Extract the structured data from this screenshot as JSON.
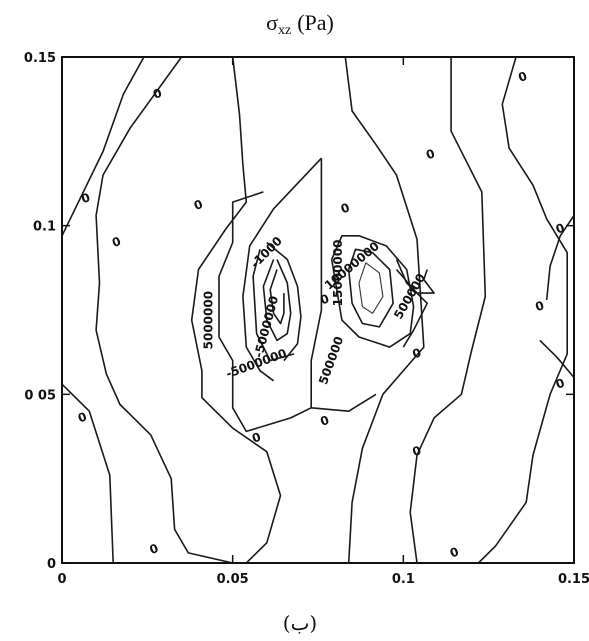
{
  "chart_data": {
    "type": "contour",
    "title": "σ",
    "title_subscript": "xz",
    "title_unit": "(Pa)",
    "caption": "(ب)",
    "xlim": [
      0,
      0.15
    ],
    "ylim": [
      0,
      0.15
    ],
    "x_ticks": [
      "0",
      "0.05",
      "0.1",
      "0.15"
    ],
    "y_ticks": [
      "0",
      "0 05",
      "0.1",
      "0.15"
    ],
    "grid": false,
    "contour_labels": [
      "0",
      "0",
      "0",
      "0",
      "0",
      "0",
      "0",
      "0",
      "0",
      "0",
      "0",
      "0",
      "0",
      "0",
      "0",
      "0",
      "0",
      "0",
      "5000000",
      "-5000000",
      "-1000",
      "10000000",
      "15000000",
      "500000"
    ],
    "contours": [
      {
        "label": "0",
        "points": [
          [
            0.0,
            0.097
          ],
          [
            0.012,
            0.122
          ],
          [
            0.018,
            0.139
          ],
          [
            0.024,
            0.15
          ]
        ]
      },
      {
        "label": "0",
        "points": [
          [
            0.0,
            0.053
          ],
          [
            0.008,
            0.045
          ],
          [
            0.014,
            0.026
          ],
          [
            0.015,
            0.0
          ]
        ]
      },
      {
        "label": "0",
        "points": [
          [
            0.035,
            0.15
          ],
          [
            0.02,
            0.129
          ],
          [
            0.012,
            0.115
          ],
          [
            0.01,
            0.103
          ],
          [
            0.011,
            0.083
          ],
          [
            0.01,
            0.069
          ],
          [
            0.013,
            0.056
          ],
          [
            0.017,
            0.047
          ],
          [
            0.026,
            0.038
          ],
          [
            0.032,
            0.025
          ],
          [
            0.033,
            0.01
          ],
          [
            0.037,
            0.003
          ],
          [
            0.05,
            0.0
          ]
        ]
      },
      {
        "label": "0",
        "points": [
          [
            0.133,
            0.15
          ],
          [
            0.129,
            0.136
          ],
          [
            0.131,
            0.123
          ],
          [
            0.138,
            0.112
          ],
          [
            0.142,
            0.102
          ],
          [
            0.148,
            0.092
          ],
          [
            0.148,
            0.062
          ],
          [
            0.143,
            0.05
          ],
          [
            0.138,
            0.032
          ],
          [
            0.136,
            0.018
          ],
          [
            0.127,
            0.005
          ],
          [
            0.122,
            0.0
          ]
        ]
      },
      {
        "label": "0",
        "points": [
          [
            0.114,
            0.15
          ],
          [
            0.114,
            0.128
          ],
          [
            0.123,
            0.11
          ],
          [
            0.124,
            0.079
          ],
          [
            0.12,
            0.063
          ],
          [
            0.117,
            0.05
          ],
          [
            0.109,
            0.043
          ],
          [
            0.104,
            0.032
          ],
          [
            0.102,
            0.015
          ],
          [
            0.104,
            0.0
          ]
        ]
      },
      {
        "label": "0",
        "points": [
          [
            0.15,
            0.103
          ],
          [
            0.146,
            0.097
          ],
          [
            0.143,
            0.088
          ],
          [
            0.142,
            0.078
          ]
        ]
      },
      {
        "label": "0",
        "points": [
          [
            0.15,
            0.055
          ],
          [
            0.145,
            0.061
          ],
          [
            0.14,
            0.066
          ]
        ]
      },
      {
        "label": "0",
        "points": [
          [
            0.05,
            0.15
          ],
          [
            0.052,
            0.133
          ],
          [
            0.053,
            0.118
          ],
          [
            0.054,
            0.107
          ],
          [
            0.048,
            0.099
          ],
          [
            0.04,
            0.087
          ],
          [
            0.038,
            0.072
          ],
          [
            0.041,
            0.057
          ],
          [
            0.041,
            0.049
          ],
          [
            0.05,
            0.04
          ],
          [
            0.06,
            0.033
          ],
          [
            0.064,
            0.02
          ],
          [
            0.06,
            0.006
          ],
          [
            0.054,
            0.0
          ]
        ]
      },
      {
        "label": "0",
        "points": [
          [
            0.083,
            0.15
          ],
          [
            0.085,
            0.134
          ],
          [
            0.092,
            0.124
          ],
          [
            0.098,
            0.115
          ],
          [
            0.104,
            0.096
          ],
          [
            0.106,
            0.064
          ],
          [
            0.094,
            0.05
          ],
          [
            0.088,
            0.034
          ],
          [
            0.085,
            0.018
          ],
          [
            0.084,
            0.0
          ]
        ]
      },
      {
        "label": "0",
        "points": [
          [
            0.076,
            0.12
          ],
          [
            0.076,
            0.075
          ],
          [
            0.073,
            0.06
          ],
          [
            0.073,
            0.046
          ],
          [
            0.084,
            0.045
          ],
          [
            0.092,
            0.05
          ]
        ]
      },
      {
        "label": "0",
        "points": [
          [
            0.059,
            0.11
          ],
          [
            0.05,
            0.107
          ],
          [
            0.05,
            0.095
          ],
          [
            0.046,
            0.085
          ],
          [
            0.046,
            0.067
          ],
          [
            0.05,
            0.06
          ],
          [
            0.05,
            0.046
          ],
          [
            0.054,
            0.039
          ],
          [
            0.067,
            0.043
          ],
          [
            0.073,
            0.046
          ]
        ]
      },
      {
        "label": "-1000",
        "points": [
          [
            0.076,
            0.12
          ],
          [
            0.062,
            0.105
          ],
          [
            0.055,
            0.094
          ],
          [
            0.053,
            0.079
          ],
          [
            0.054,
            0.064
          ],
          [
            0.058,
            0.057
          ],
          [
            0.062,
            0.054
          ]
        ]
      },
      {
        "label": "-5000000",
        "points": [
          [
            0.058,
            0.093
          ],
          [
            0.056,
            0.085
          ],
          [
            0.057,
            0.068
          ],
          [
            0.061,
            0.06
          ],
          [
            0.068,
            0.062
          ]
        ]
      },
      {
        "label": "inner",
        "thin": false,
        "points": [
          [
            0.062,
            0.09
          ],
          [
            0.059,
            0.082
          ],
          [
            0.06,
            0.072
          ],
          [
            0.063,
            0.066
          ],
          [
            0.066,
            0.068
          ],
          [
            0.067,
            0.074
          ],
          [
            0.066,
            0.083
          ],
          [
            0.063,
            0.09
          ]
        ]
      },
      {
        "label": "inner",
        "thin": false,
        "points": [
          [
            0.063,
            0.087
          ],
          [
            0.061,
            0.081
          ],
          [
            0.062,
            0.074
          ],
          [
            0.064,
            0.071
          ],
          [
            0.065,
            0.074
          ],
          [
            0.065,
            0.08
          ]
        ]
      },
      {
        "label": "inner",
        "thin": false,
        "points": [
          [
            0.06,
            0.095
          ],
          [
            0.066,
            0.09
          ],
          [
            0.069,
            0.082
          ],
          [
            0.07,
            0.073
          ],
          [
            0.069,
            0.065
          ],
          [
            0.065,
            0.06
          ]
        ]
      },
      {
        "label": "1000",
        "points": [
          [
            0.079,
            0.09
          ],
          [
            0.082,
            0.097
          ],
          [
            0.087,
            0.097
          ],
          [
            0.095,
            0.094
          ],
          [
            0.101,
            0.087
          ],
          [
            0.103,
            0.076
          ],
          [
            0.102,
            0.068
          ],
          [
            0.096,
            0.064
          ],
          [
            0.087,
            0.067
          ],
          [
            0.082,
            0.072
          ],
          [
            0.079,
            0.09
          ]
        ]
      },
      {
        "label": "10000000",
        "points": [
          [
            0.084,
            0.087
          ],
          [
            0.086,
            0.093
          ],
          [
            0.091,
            0.092
          ],
          [
            0.096,
            0.087
          ],
          [
            0.097,
            0.077
          ],
          [
            0.093,
            0.07
          ],
          [
            0.088,
            0.071
          ],
          [
            0.085,
            0.077
          ],
          [
            0.084,
            0.087
          ]
        ]
      },
      {
        "label": "15000000",
        "thin": true,
        "points": [
          [
            0.089,
            0.089
          ],
          [
            0.093,
            0.086
          ],
          [
            0.094,
            0.079
          ],
          [
            0.091,
            0.074
          ],
          [
            0.088,
            0.076
          ],
          [
            0.087,
            0.083
          ],
          [
            0.089,
            0.089
          ]
        ]
      },
      {
        "label": "arrow",
        "points": [
          [
            0.098,
            0.087
          ],
          [
            0.104,
            0.08
          ],
          [
            0.109,
            0.08
          ],
          [
            0.106,
            0.084
          ],
          [
            0.107,
            0.087
          ]
        ]
      },
      {
        "label": "500000",
        "points": [
          [
            0.098,
            0.09
          ],
          [
            0.101,
            0.083
          ],
          [
            0.107,
            0.077
          ],
          [
            0.103,
            0.069
          ],
          [
            0.1,
            0.064
          ]
        ]
      }
    ],
    "label_positions": [
      {
        "text": "0",
        "x": 0.028,
        "y": 0.139,
        "rot": -20
      },
      {
        "text": "0",
        "x": 0.007,
        "y": 0.108,
        "rot": -20
      },
      {
        "text": "0",
        "x": 0.016,
        "y": 0.095,
        "rot": -20
      },
      {
        "text": "0",
        "x": 0.006,
        "y": 0.043,
        "rot": -20
      },
      {
        "text": "0",
        "x": 0.027,
        "y": 0.004,
        "rot": -20
      },
      {
        "text": "0",
        "x": 0.04,
        "y": 0.106,
        "rot": -20
      },
      {
        "text": "0",
        "x": 0.057,
        "y": 0.037,
        "rot": -20
      },
      {
        "text": "0",
        "x": 0.077,
        "y": 0.078,
        "rot": -20
      },
      {
        "text": "0",
        "x": 0.077,
        "y": 0.042,
        "rot": -20
      },
      {
        "text": "0",
        "x": 0.083,
        "y": 0.105,
        "rot": -20
      },
      {
        "text": "0",
        "x": 0.108,
        "y": 0.121,
        "rot": -20
      },
      {
        "text": "0",
        "x": 0.104,
        "y": 0.062,
        "rot": -20
      },
      {
        "text": "0",
        "x": 0.104,
        "y": 0.033,
        "rot": -20
      },
      {
        "text": "0",
        "x": 0.115,
        "y": 0.003,
        "rot": -20
      },
      {
        "text": "0",
        "x": 0.135,
        "y": 0.144,
        "rot": -20
      },
      {
        "text": "0",
        "x": 0.146,
        "y": 0.099,
        "rot": -20
      },
      {
        "text": "0",
        "x": 0.14,
        "y": 0.076,
        "rot": -20
      },
      {
        "text": "0",
        "x": 0.146,
        "y": 0.053,
        "rot": -20
      },
      {
        "text": "5000000",
        "x": 0.043,
        "y": 0.072,
        "rot": -90
      },
      {
        "text": "-5000000",
        "x": 0.057,
        "y": 0.059,
        "rot": -20
      },
      {
        "text": "-5000000",
        "x": 0.06,
        "y": 0.07,
        "rot": -75
      },
      {
        "text": "-1000",
        "x": 0.06,
        "y": 0.092,
        "rot": -45
      },
      {
        "text": "10000000",
        "x": 0.085,
        "y": 0.088,
        "rot": -40
      },
      {
        "text": "15000000",
        "x": 0.081,
        "y": 0.086,
        "rot": -90
      },
      {
        "text": "500000",
        "x": 0.079,
        "y": 0.06,
        "rot": -70
      },
      {
        "text": "500000",
        "x": 0.102,
        "y": 0.079,
        "rot": -60
      }
    ]
  }
}
